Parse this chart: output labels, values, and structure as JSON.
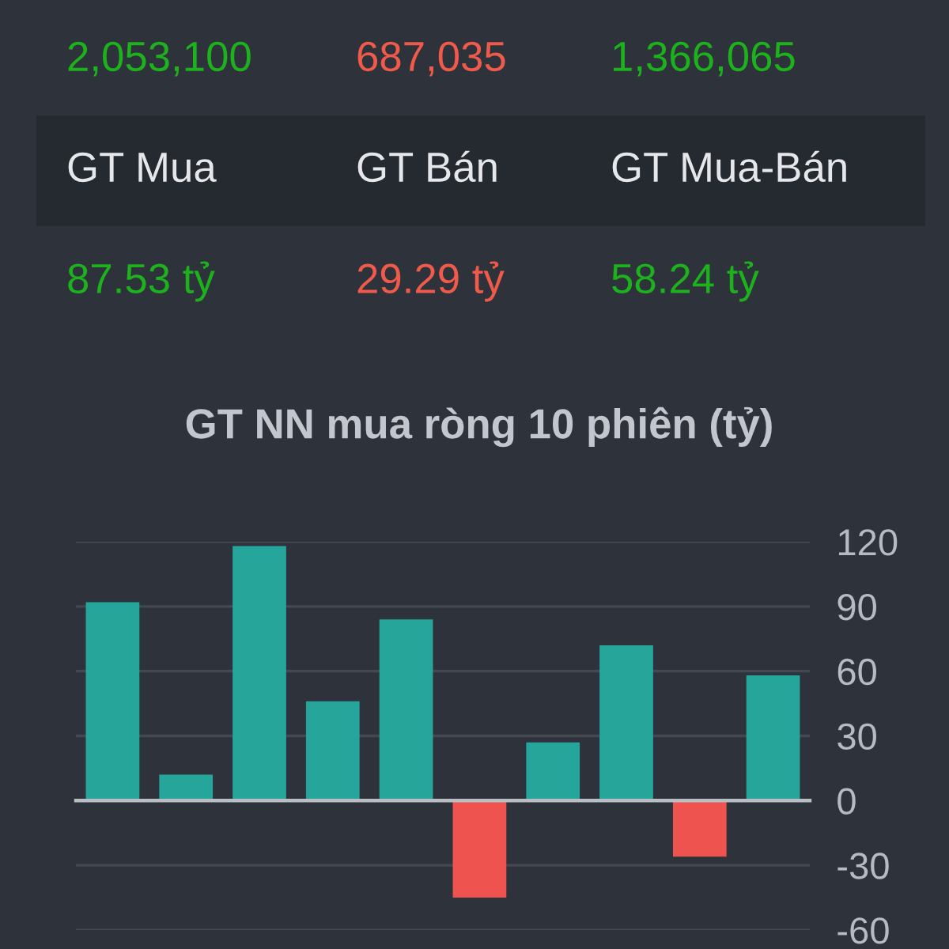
{
  "chart_data": [
    {
      "type": "other",
      "categories": [
        "GT Mua",
        "GT Bán",
        "GT Mua-Bán"
      ],
      "series": [
        {
          "values": [
            2053100,
            687035,
            1366065
          ],
          "value_labels": [
            "2,053,100",
            "687,035",
            "1,366,065"
          ],
          "colors": [
            "#1db11d",
            "#f05a4b",
            "#1db11d"
          ]
        },
        {
          "values": [
            87.53,
            29.29,
            58.24
          ],
          "value_labels": [
            "87.53 tỷ",
            "29.29 tỷ",
            "58.24 tỷ"
          ],
          "colors": [
            "#1db11d",
            "#f05a4b",
            "#1db11d"
          ]
        }
      ]
    },
    {
      "type": "bar",
      "title": "GT NN mua ròng 10 phiên (tỷ)",
      "categories": [
        null,
        null,
        null,
        null,
        null,
        null,
        null,
        null,
        null,
        null
      ],
      "values": [
        92,
        12,
        118,
        46,
        84,
        -45,
        27,
        72,
        -26,
        58
      ],
      "colors": [
        "#26a69a",
        "#26a69a",
        "#26a69a",
        "#26a69a",
        "#26a69a",
        "#ef5350",
        "#26a69a",
        "#26a69a",
        "#ef5350",
        "#26a69a"
      ],
      "ylim": [
        -60,
        120
      ],
      "yticks": [
        -60,
        -30,
        0,
        30,
        60,
        90,
        120
      ],
      "grid": "y"
    }
  ]
}
